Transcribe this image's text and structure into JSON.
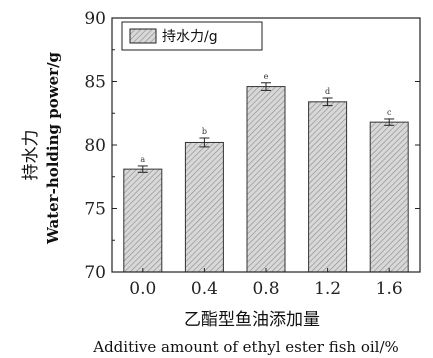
{
  "chart_data": {
    "type": "bar",
    "categories": [
      "0.0",
      "0.4",
      "0.8",
      "1.2",
      "1.6"
    ],
    "values": [
      78.1,
      80.2,
      84.6,
      83.4,
      81.8
    ],
    "errors": [
      0.25,
      0.35,
      0.3,
      0.3,
      0.25
    ],
    "significance": [
      "a",
      "b",
      "e",
      "d",
      "c"
    ],
    "series": [
      {
        "name": "持水力/g",
        "values": [
          78.1,
          80.2,
          84.6,
          83.4,
          81.8
        ]
      }
    ],
    "ylim": [
      70,
      90
    ],
    "yticks": [
      "70",
      "75",
      "80",
      "85",
      "90"
    ],
    "ylabel_cn": "持水力",
    "ylabel_en": "Water-holding power/g",
    "xlabel_cn": "乙酯型鱼油添加量",
    "xlabel_en": "Additive amount of ethyl ester fish oil/%",
    "legend_label": "持水力/g",
    "legend_position": "top-left",
    "bar_fill": "#d8d8d8",
    "bar_hatch": "#8a8a8a",
    "grid": false
  }
}
